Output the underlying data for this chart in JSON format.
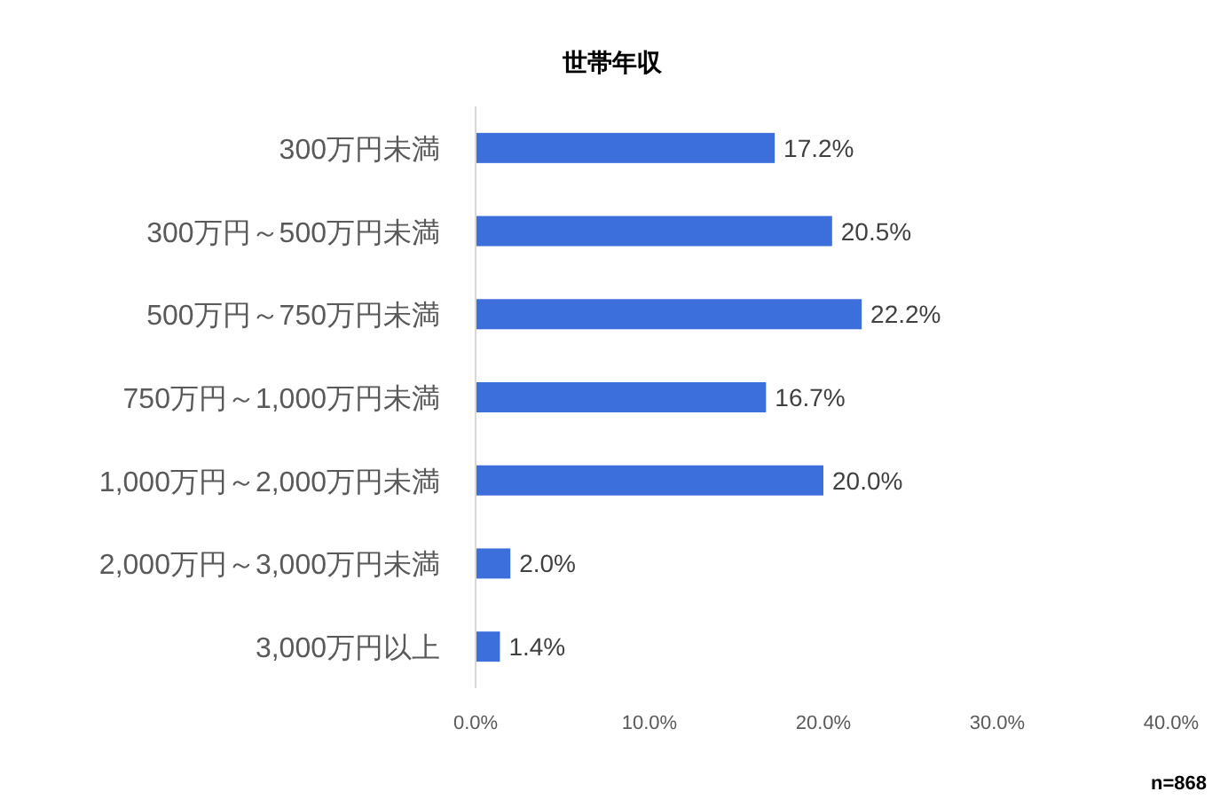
{
  "chart_data": {
    "type": "bar",
    "orientation": "horizontal",
    "title": "世帯年収",
    "categories": [
      "300万円未満",
      "300万円～500万円未満",
      "500万円～750万円未満",
      "750万円～1,000万円未満",
      "1,000万円～2,000万円未満",
      "2,000万円～3,000万円未満",
      "3,000万円以上"
    ],
    "values": [
      17.2,
      20.5,
      22.2,
      16.7,
      20.0,
      2.0,
      1.4
    ],
    "value_labels": [
      "17.2%",
      "20.5%",
      "22.2%",
      "16.7%",
      "20.0%",
      "2.0%",
      "1.4%"
    ],
    "color": "#3c6fdc",
    "xlim": [
      0,
      40
    ],
    "xticks": [
      {
        "value": 0,
        "label": "0.0%"
      },
      {
        "value": 10,
        "label": "10.0%"
      },
      {
        "value": 20,
        "label": "20.0%"
      },
      {
        "value": 30,
        "label": "30.0%"
      },
      {
        "value": 40,
        "label": "40.0%"
      }
    ],
    "annotations": [
      "n=868"
    ]
  }
}
